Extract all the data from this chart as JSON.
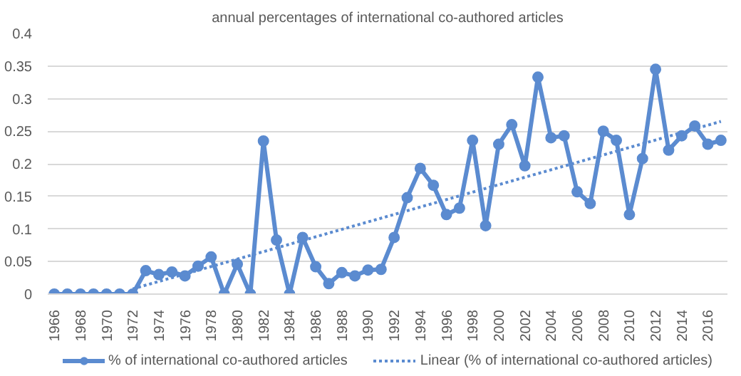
{
  "chart_data": {
    "type": "line",
    "title": "annual percentages of international co-authored articles",
    "x": [
      1966,
      1967,
      1968,
      1969,
      1970,
      1971,
      1972,
      1973,
      1974,
      1975,
      1976,
      1977,
      1978,
      1979,
      1980,
      1981,
      1982,
      1983,
      1984,
      1985,
      1986,
      1987,
      1988,
      1989,
      1990,
      1991,
      1992,
      1993,
      1994,
      1995,
      1996,
      1997,
      1998,
      1999,
      2000,
      2001,
      2002,
      2003,
      2004,
      2005,
      2006,
      2007,
      2008,
      2009,
      2010,
      2011,
      2012,
      2013,
      2014,
      2015,
      2016,
      2017
    ],
    "series": [
      {
        "name": "% of international co-authored articles",
        "color": "#5b8bd0",
        "marker": "circle",
        "line_style": "solid",
        "values": [
          0,
          0,
          0,
          0,
          0,
          0,
          0,
          0.036,
          0.03,
          0.034,
          0.028,
          0.043,
          0.057,
          0,
          0.046,
          0,
          0.235,
          0.083,
          0,
          0.087,
          0.042,
          0.016,
          0.033,
          0.028,
          0.037,
          0.038,
          0.087,
          0.148,
          0.193,
          0.167,
          0.122,
          0.132,
          0.236,
          0.105,
          0.23,
          0.26,
          0.197,
          0.333,
          0.24,
          0.243,
          0.157,
          0.139,
          0.25,
          0.236,
          0.122,
          0.208,
          0.345,
          0.221,
          0.243,
          0.258,
          0.23,
          0.236
        ]
      },
      {
        "name": "Linear (% of international co-authored articles)",
        "color": "#5b8bd0",
        "marker": "none",
        "line_style": "dotted",
        "x": [
          1972,
          2017
        ],
        "values": [
          0.008,
          0.265
        ]
      }
    ],
    "xlim": [
      1965.5,
      2017.5
    ],
    "xticks": [
      1966,
      1968,
      1970,
      1972,
      1974,
      1976,
      1978,
      1980,
      1982,
      1984,
      1986,
      1988,
      1990,
      1992,
      1994,
      1996,
      1998,
      2000,
      2002,
      2004,
      2006,
      2008,
      2010,
      2012,
      2014,
      2016
    ],
    "ylim": [
      0,
      0.4
    ],
    "yticks": [
      0,
      0.05,
      0.1,
      0.15,
      0.2,
      0.25,
      0.3,
      0.35,
      0.4
    ],
    "grid": "y",
    "legend": "bottom"
  }
}
